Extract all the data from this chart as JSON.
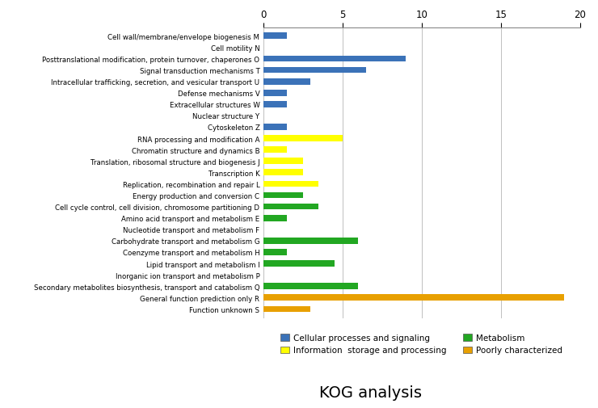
{
  "bars": [
    {
      "label": "Cell wall/membrane/envelope biogenesis M",
      "value": 1.5,
      "color": "#3B72B8",
      "category": "Cellular processes and signaling"
    },
    {
      "label": "Cell motility N",
      "value": 0,
      "color": "#3B72B8",
      "category": "Cellular processes and signaling"
    },
    {
      "label": "Posttranslational modification, protein turnover, chaperones O",
      "value": 9.0,
      "color": "#3B72B8",
      "category": "Cellular processes and signaling"
    },
    {
      "label": "Signal transduction mechanisms T",
      "value": 6.5,
      "color": "#3B72B8",
      "category": "Cellular processes and signaling"
    },
    {
      "label": "Intracellular trafficking, secretion, and vesicular transport U",
      "value": 3.0,
      "color": "#3B72B8",
      "category": "Cellular processes and signaling"
    },
    {
      "label": "Defense mechanisms V",
      "value": 1.5,
      "color": "#3B72B8",
      "category": "Cellular processes and signaling"
    },
    {
      "label": "Extracellular structures W",
      "value": 1.5,
      "color": "#3B72B8",
      "category": "Cellular processes and signaling"
    },
    {
      "label": "Nuclear structure Y",
      "value": 0,
      "color": "#3B72B8",
      "category": "Cellular processes and signaling"
    },
    {
      "label": "Cytoskeleton Z",
      "value": 1.5,
      "color": "#3B72B8",
      "category": "Cellular processes and signaling"
    },
    {
      "label": "RNA processing and modification A",
      "value": 5.0,
      "color": "#FFFF00",
      "category": "Information storage and processing"
    },
    {
      "label": "Chromatin structure and dynamics B",
      "value": 1.5,
      "color": "#FFFF00",
      "category": "Information storage and processing"
    },
    {
      "label": "Translation, ribosomal structure and biogenesis J",
      "value": 2.5,
      "color": "#FFFF00",
      "category": "Information storage and processing"
    },
    {
      "label": "Transcription K",
      "value": 2.5,
      "color": "#FFFF00",
      "category": "Information storage and processing"
    },
    {
      "label": "Replication, recombination and repair L",
      "value": 3.5,
      "color": "#FFFF00",
      "category": "Information storage and processing"
    },
    {
      "label": "Energy production and conversion C",
      "value": 2.5,
      "color": "#22A722",
      "category": "Metabolism"
    },
    {
      "label": "Cell cycle control, cell division, chromosome partitioning D",
      "value": 3.5,
      "color": "#22A722",
      "category": "Metabolism"
    },
    {
      "label": "Amino acid transport and metabolism E",
      "value": 1.5,
      "color": "#22A722",
      "category": "Metabolism"
    },
    {
      "label": "Nucleotide transport and metabolism F",
      "value": 0,
      "color": "#22A722",
      "category": "Metabolism"
    },
    {
      "label": "Carbohydrate transport and metabolism G",
      "value": 6.0,
      "color": "#22A722",
      "category": "Metabolism"
    },
    {
      "label": "Coenzyme transport and metabolism H",
      "value": 1.5,
      "color": "#22A722",
      "category": "Metabolism"
    },
    {
      "label": "Lipid transport and metabolism I",
      "value": 4.5,
      "color": "#22A722",
      "category": "Metabolism"
    },
    {
      "label": "Inorganic ion transport and metabolism P",
      "value": 0,
      "color": "#22A722",
      "category": "Metabolism"
    },
    {
      "label": "Secondary metabolites biosynthesis, transport and catabolism Q",
      "value": 6.0,
      "color": "#22A722",
      "category": "Metabolism"
    },
    {
      "label": "General function prediction only R",
      "value": 19.0,
      "color": "#E8A000",
      "category": "Poorly characterized"
    },
    {
      "label": "Function unknown S",
      "value": 3.0,
      "color": "#E8A000",
      "category": "Poorly characterized"
    }
  ],
  "xlim": [
    0,
    20
  ],
  "xticks": [
    0,
    5,
    10,
    15,
    20
  ],
  "xlabel": "KOG analysis",
  "legend_row1": [
    {
      "label": "Cellular processes and signaling",
      "color": "#3B72B8"
    },
    {
      "label": "Information  storage and processing",
      "color": "#FFFF00"
    }
  ],
  "legend_row2": [
    {
      "label": "Metabolism",
      "color": "#22A722"
    },
    {
      "label": "Poorly characterized",
      "color": "#E8A000"
    }
  ],
  "background_color": "#FFFFFF",
  "bar_height": 0.55,
  "grid_color": "#C0C0C0",
  "label_fontsize": 6.2,
  "tick_fontsize": 8.5,
  "xlabel_fontsize": 14
}
